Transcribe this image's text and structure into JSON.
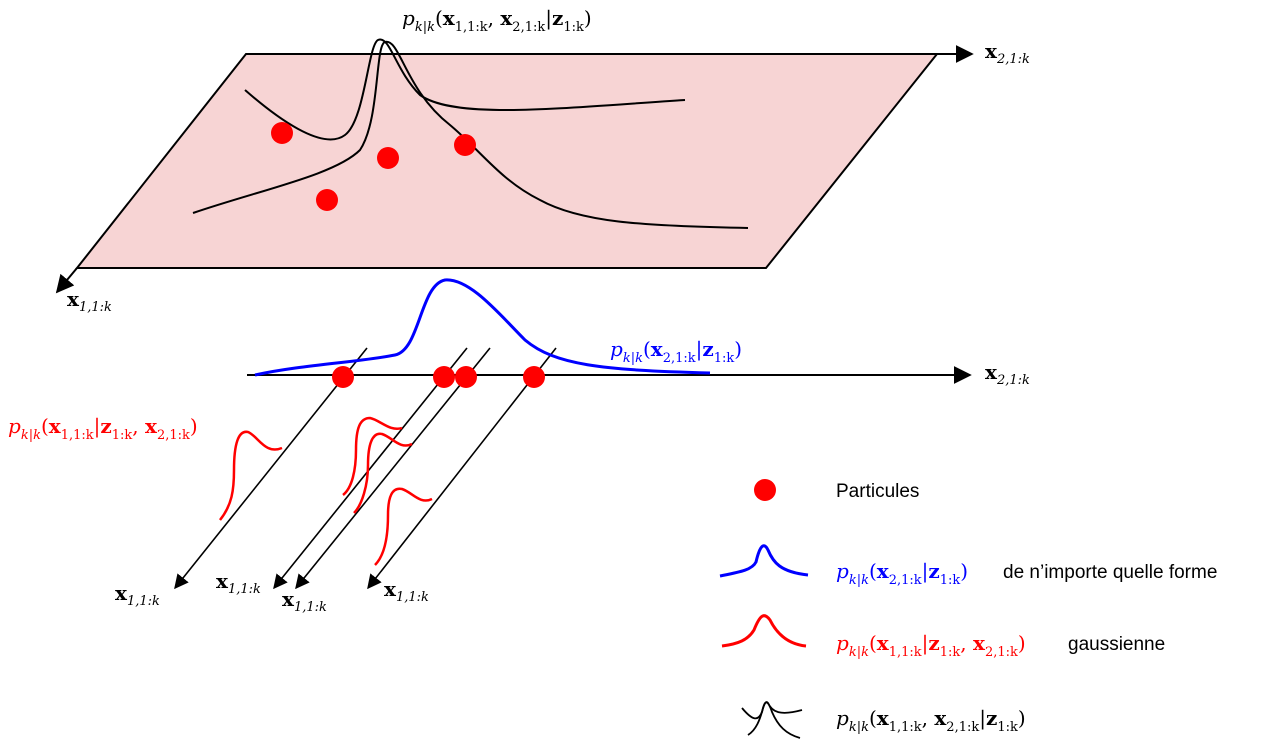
{
  "colors": {
    "plane_fill": "#f7d4d4",
    "particle": "#ff0000",
    "marginal_curve": "#0000ff",
    "conditional_curve": "#ff0000",
    "joint_curve": "#000000",
    "axis": "#000000"
  },
  "labels": {
    "joint_density_top": {
      "p": "p",
      "sub": "k|k",
      "x1": "x",
      "x1_sub": "1,1:k",
      "x2": "x",
      "x2_sub": "2,1:k",
      "z": "z",
      "z_sub": "1:k"
    },
    "axis_x2_top": {
      "base": "x",
      "sub": "2,1:k"
    },
    "axis_x1_top": {
      "base": "x",
      "sub": "1,1:k"
    },
    "axis_x2_mid": {
      "base": "x",
      "sub": "2,1:k"
    },
    "marginal_density": {
      "p": "p",
      "sub": "k|k",
      "x2": "x",
      "x2_sub": "2,1:k",
      "z": "z",
      "z_sub": "1:k"
    },
    "conditional_density": {
      "p": "p",
      "sub": "k|k",
      "x1": "x",
      "x1_sub": "1,1:k",
      "z": "z",
      "z_sub": "1:k",
      "x2": "x",
      "x2_sub": "2,1:k"
    },
    "fan_axes": [
      {
        "base": "x",
        "sub": "1,1:k"
      },
      {
        "base": "x",
        "sub": "1,1:k"
      },
      {
        "base": "x",
        "sub": "1,1:k"
      },
      {
        "base": "x",
        "sub": "1,1:k"
      }
    ]
  },
  "legend": {
    "particles_label": "Particules",
    "marginal_suffix": "de n’importe quelle forme",
    "conditional_suffix": "gaussienne"
  }
}
